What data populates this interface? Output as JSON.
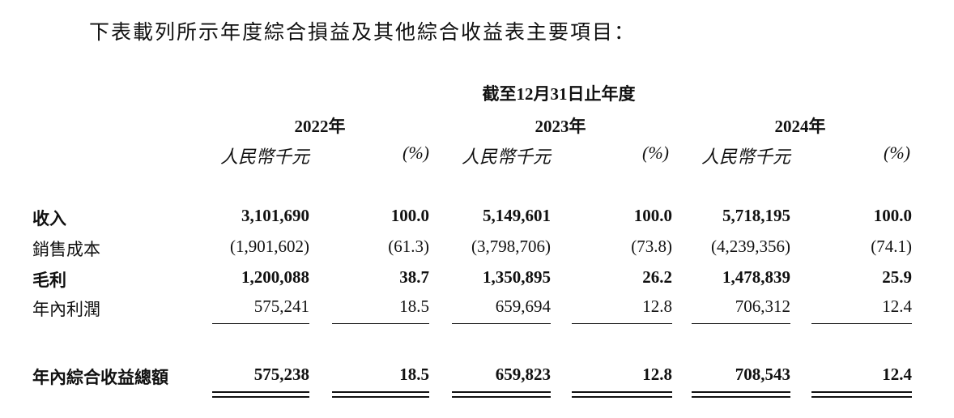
{
  "intro": "下表載列所示年度綜合損益及其他綜合收益表主要項目：",
  "period_header": "截至12月31日止年度",
  "years": [
    "2022年",
    "2023年",
    "2024年"
  ],
  "unit_rmb": "人民幣千元",
  "unit_pct": "(%)",
  "rows": [
    {
      "label": "收入",
      "bold": true,
      "values": [
        "3,101,690",
        "100.0",
        "5,149,601",
        "100.0",
        "5,718,195",
        "100.0"
      ]
    },
    {
      "label": "銷售成本",
      "bold": false,
      "values": [
        "(1,901,602)",
        "(61.3)",
        "(3,798,706)",
        "(73.8)",
        "(4,239,356)",
        "(74.1)"
      ]
    },
    {
      "label": "毛利",
      "bold": true,
      "values": [
        "1,200,088",
        "38.7",
        "1,350,895",
        "26.2",
        "1,478,839",
        "25.9"
      ]
    },
    {
      "label": "年內利潤",
      "bold": false,
      "values": [
        "575,241",
        "18.5",
        "659,694",
        "12.8",
        "706,312",
        "12.4"
      ]
    },
    {
      "label": "年內綜合收益總額",
      "bold": true,
      "values": [
        "575,238",
        "18.5",
        "659,823",
        "12.8",
        "708,543",
        "12.4"
      ]
    }
  ]
}
